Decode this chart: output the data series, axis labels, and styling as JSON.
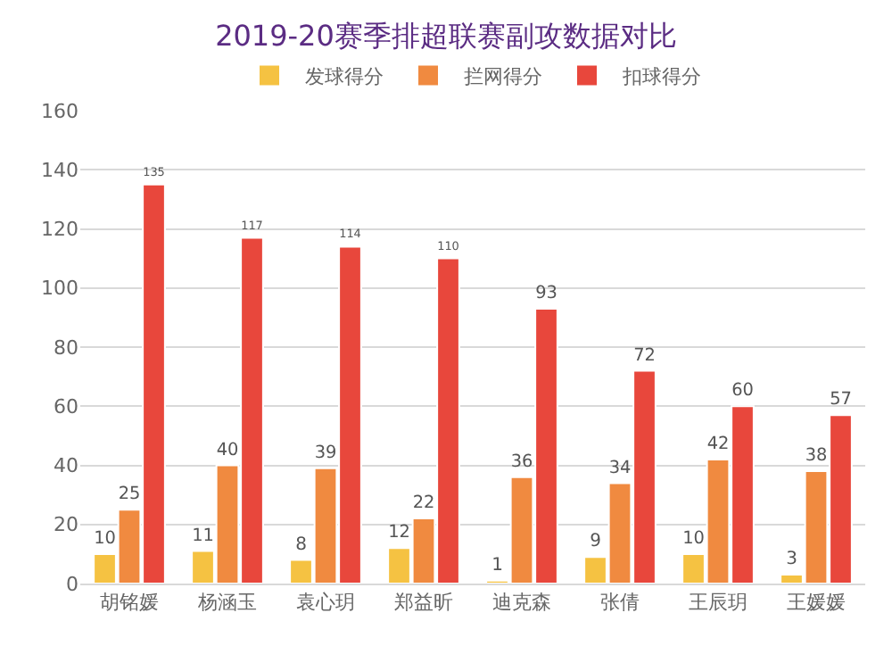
{
  "chart_data": {
    "type": "bar",
    "title": "2019-20赛季排超联赛副攻数据对比",
    "categories": [
      "胡铭媛",
      "杨涵玉",
      "袁心玥",
      "郑益昕",
      "迪克森",
      "张倩",
      "王辰玥",
      "王媛媛"
    ],
    "series": [
      {
        "name": "发球得分",
        "color": "#f5c242",
        "values": [
          10,
          11,
          8,
          12,
          1,
          9,
          10,
          3
        ]
      },
      {
        "name": "拦网得分",
        "color": "#f08a40",
        "values": [
          25,
          40,
          39,
          22,
          36,
          34,
          42,
          38
        ]
      },
      {
        "name": "扣球得分",
        "color": "#e8473c",
        "values": [
          135,
          117,
          114,
          110,
          93,
          72,
          60,
          57
        ]
      }
    ],
    "ylim": [
      0,
      160
    ],
    "yticks": [
      0,
      20,
      40,
      60,
      80,
      100,
      120,
      140,
      160
    ],
    "grid": "y",
    "legend": "top",
    "data_labels": true
  }
}
